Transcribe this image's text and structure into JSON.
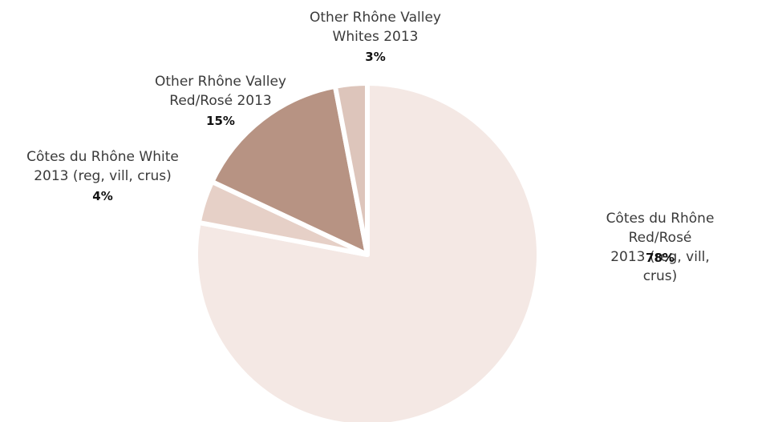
{
  "chart_data": {
    "type": "pie",
    "categories": [
      "Côtes du Rhône Red/Rosé\n2013 (reg, vill, crus)",
      "Côtes du Rhône White\n2013 (reg, vill, crus)",
      "Other Rhône Valley\nRed/Rosé  2013",
      "Other Rhône Valley\nWhites 2013"
    ],
    "values": [
      78,
      4,
      15,
      3
    ],
    "value_labels": [
      "78%",
      "4%",
      "15%",
      "3%"
    ],
    "colors": [
      "#f4e8e4",
      "#e6d0c7",
      "#b79383",
      "#ddc5bb"
    ]
  }
}
